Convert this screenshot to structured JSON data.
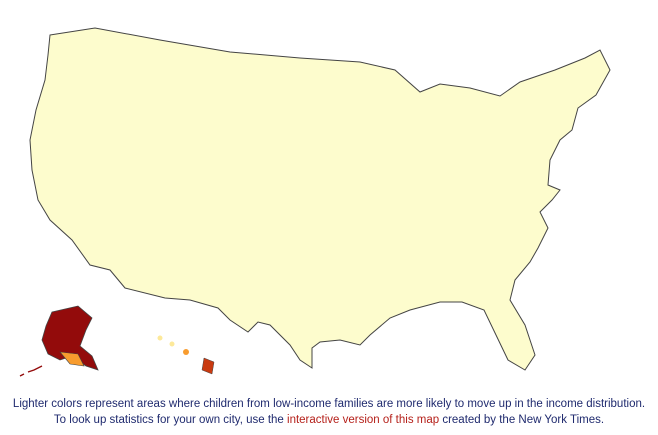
{
  "palette": {
    "lightest": "#fdfccd",
    "light": "#fde99a",
    "mid_light": "#fcc55a",
    "mid": "#f89c2e",
    "mid_dark": "#e8621a",
    "dark": "#c93a10",
    "darkest": "#930b0b",
    "no_data": "#d4d4d4",
    "boundary": "#555555"
  },
  "caption": {
    "line1": "Lighter colors represent areas where children from low-income families are more likely to move up in the income distribution.",
    "line2_before": "To look up statistics for your own city, use the ",
    "link": "interactive version of this map",
    "line2_after": " created by the New York Times."
  }
}
